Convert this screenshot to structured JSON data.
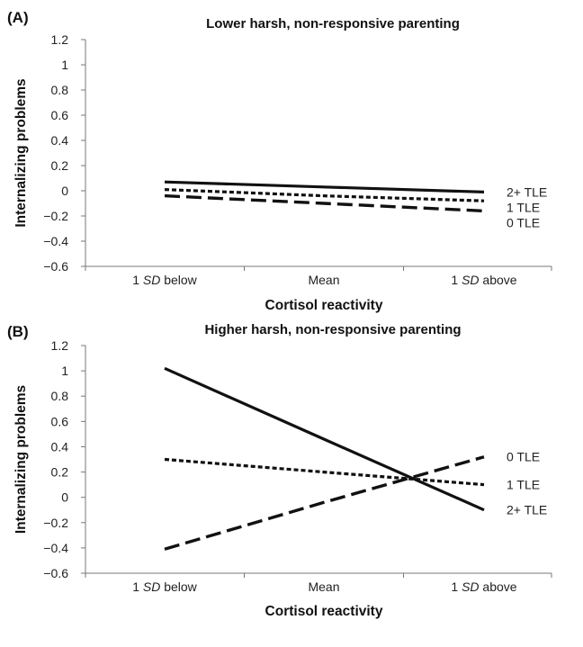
{
  "chart_data": [
    {
      "type": "line",
      "panel": "(A)",
      "title": "Lower harsh, non-responsive parenting",
      "xlabel": "Cortisol reactivity",
      "ylabel": "Internalizing problems",
      "categories": [
        "1 SD below",
        "Mean",
        "1 SD above"
      ],
      "category_parts": [
        {
          "pre": "1 ",
          "em": "SD",
          "post": " below"
        },
        {
          "pre": "",
          "em": "",
          "post": "Mean"
        },
        {
          "pre": "1 ",
          "em": "SD",
          "post": " above"
        }
      ],
      "ylim": [
        -0.6,
        1.2
      ],
      "yticks": [
        "1.2",
        "1",
        "0.8",
        "0.6",
        "0.4",
        "0.2",
        "0",
        "−0.2",
        "−0.4",
        "−0.6"
      ],
      "ytick_values": [
        1.2,
        1,
        0.8,
        0.6,
        0.4,
        0.2,
        0,
        -0.2,
        -0.4,
        -0.6
      ],
      "grid": false,
      "legend": "inline-right",
      "series": [
        {
          "name": "2+ TLE",
          "style": "solid",
          "values": [
            0.07,
            0.03,
            -0.01
          ]
        },
        {
          "name": "1 TLE",
          "style": "dotted",
          "values": [
            0.01,
            -0.04,
            -0.08
          ]
        },
        {
          "name": "0 TLE",
          "style": "dashed",
          "values": [
            -0.04,
            -0.1,
            -0.16
          ]
        }
      ]
    },
    {
      "type": "line",
      "panel": "(B)",
      "title": "Higher harsh, non-responsive parenting",
      "xlabel": "Cortisol reactivity",
      "ylabel": "Internalizing problems",
      "categories": [
        "1 SD below",
        "Mean",
        "1 SD above"
      ],
      "category_parts": [
        {
          "pre": "1 ",
          "em": "SD",
          "post": " below"
        },
        {
          "pre": "",
          "em": "",
          "post": "Mean"
        },
        {
          "pre": "1 ",
          "em": "SD",
          "post": " above"
        }
      ],
      "ylim": [
        -0.6,
        1.2
      ],
      "yticks": [
        "1.2",
        "1",
        "0.8",
        "0.6",
        "0.4",
        "0.2",
        "0",
        "−0.2",
        "−0.4",
        "−0.6"
      ],
      "ytick_values": [
        1.2,
        1,
        0.8,
        0.6,
        0.4,
        0.2,
        0,
        -0.2,
        -0.4,
        -0.6
      ],
      "grid": false,
      "legend": "inline-right",
      "series": [
        {
          "name": "2+ TLE",
          "style": "solid",
          "values": [
            1.02,
            0.46,
            -0.1
          ]
        },
        {
          "name": "1 TLE",
          "style": "dotted",
          "values": [
            0.3,
            0.2,
            0.1
          ]
        },
        {
          "name": "0 TLE",
          "style": "dashed",
          "values": [
            -0.41,
            -0.04,
            0.32
          ]
        }
      ]
    }
  ]
}
